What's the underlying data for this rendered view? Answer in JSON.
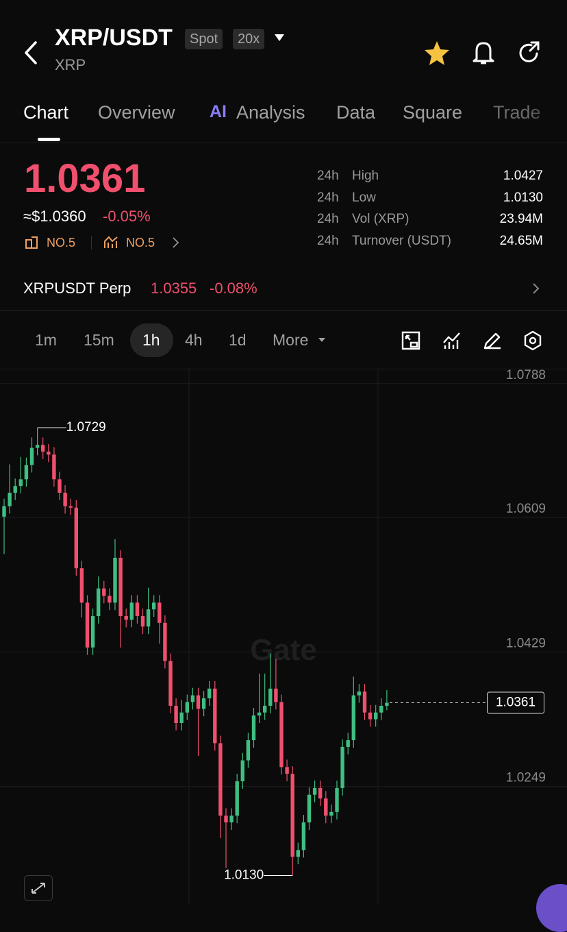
{
  "header": {
    "title": "XRP/USDT",
    "subtitle": "XRP",
    "badges": [
      "Spot",
      "20x"
    ]
  },
  "tabs": [
    "Chart",
    "Overview",
    "Analysis",
    "Data",
    "Square",
    "Trade"
  ],
  "ai_icon": "AI",
  "price": {
    "last": "1.0361",
    "usd": "≈$1.0360",
    "change": "-0.05%",
    "rank_1": "NO.5",
    "rank_2": "NO.5"
  },
  "stats": [
    {
      "period": "24h",
      "label": "High",
      "value": "1.0427"
    },
    {
      "period": "24h",
      "label": "Low",
      "value": "1.0130"
    },
    {
      "period": "24h",
      "label": "Vol (XRP)",
      "value": "23.94M"
    },
    {
      "period": "24h",
      "label": "Turnover (USDT)",
      "value": "24.65M"
    }
  ],
  "perp": {
    "name": "XRPUSDT Perp",
    "price": "1.0355",
    "change": "-0.08%"
  },
  "intervals": [
    "1m",
    "15m",
    "1h",
    "4h",
    "1d",
    "More"
  ],
  "watermark": "Gate",
  "chart_data": {
    "type": "candlestick",
    "open": [
      1.061,
      1.0624,
      1.0642,
      1.0651,
      1.066,
      1.0679,
      1.0702,
      1.0706,
      1.0697,
      1.0693,
      1.066,
      1.0642,
      1.0624,
      1.0622,
      1.0541,
      1.0495,
      1.0435,
      1.0477,
      1.0514,
      1.0504,
      1.0495,
      1.0555,
      1.0477,
      1.0472,
      1.0495,
      1.0477,
      1.0463,
      1.0486,
      1.0495,
      1.0468,
      1.0417,
      1.0357,
      1.0334,
      1.0348,
      1.0362,
      1.0371,
      1.0353,
      1.0367,
      1.038,
      1.0307,
      1.021,
      1.0201,
      1.021,
      1.0256,
      1.0284,
      1.0311,
      1.0344,
      1.0348,
      1.0357,
      1.038,
      1.0362,
      1.0275,
      1.0266,
      1.0155,
      1.0164,
      1.0201,
      1.0238,
      1.0247,
      1.0233,
      1.021,
      1.0215,
      1.0247,
      1.0302,
      1.0311,
      1.0371,
      1.0376,
      1.0348,
      1.0339,
      1.0348,
      1.0357
    ],
    "high": [
      1.0634,
      1.068,
      1.0661,
      1.069,
      1.0689,
      1.0716,
      1.0729,
      1.0716,
      1.0707,
      1.0703,
      1.067,
      1.0652,
      1.0634,
      1.0632,
      1.0551,
      1.0505,
      1.0487,
      1.053,
      1.0524,
      1.0514,
      1.058,
      1.0565,
      1.0487,
      1.0505,
      1.0505,
      1.0487,
      1.0515,
      1.0505,
      1.0505,
      1.0478,
      1.0427,
      1.0367,
      1.0365,
      1.0372,
      1.0381,
      1.0381,
      1.0377,
      1.039,
      1.039,
      1.0317,
      1.022,
      1.022,
      1.0266,
      1.0294,
      1.0321,
      1.0354,
      1.04,
      1.04,
      1.0427,
      1.042,
      1.0372,
      1.0285,
      1.0276,
      1.0174,
      1.0211,
      1.0248,
      1.0257,
      1.0257,
      1.0243,
      1.0225,
      1.0257,
      1.0312,
      1.0321,
      1.0396,
      1.0386,
      1.0386,
      1.0358,
      1.0358,
      1.0367,
      1.0378
    ],
    "low": [
      1.056,
      1.0614,
      1.0632,
      1.0641,
      1.065,
      1.0669,
      1.0692,
      1.0687,
      1.0683,
      1.065,
      1.0632,
      1.0614,
      1.0612,
      1.0531,
      1.0475,
      1.0425,
      1.0425,
      1.0467,
      1.0494,
      1.0485,
      1.0485,
      1.0435,
      1.0462,
      1.0462,
      1.0467,
      1.0453,
      1.0453,
      1.0476,
      1.044,
      1.0407,
      1.0347,
      1.0324,
      1.0324,
      1.0338,
      1.0352,
      1.029,
      1.0343,
      1.0357,
      1.0297,
      1.018,
      1.014,
      1.0191,
      1.02,
      1.0246,
      1.0274,
      1.0301,
      1.0334,
      1.0338,
      1.0347,
      1.0352,
      1.0265,
      1.0256,
      1.013,
      1.0145,
      1.0154,
      1.0191,
      1.0228,
      1.0223,
      1.02,
      1.02,
      1.0205,
      1.0237,
      1.0292,
      1.0301,
      1.0361,
      1.0338,
      1.0329,
      1.0329,
      1.0338,
      1.0351
    ],
    "close": [
      1.0624,
      1.0642,
      1.0651,
      1.066,
      1.0679,
      1.0702,
      1.0706,
      1.0697,
      1.0693,
      1.066,
      1.0642,
      1.0624,
      1.0622,
      1.0541,
      1.0495,
      1.0435,
      1.0477,
      1.0514,
      1.0504,
      1.0495,
      1.0555,
      1.0477,
      1.0472,
      1.0495,
      1.0477,
      1.0463,
      1.0486,
      1.0495,
      1.0468,
      1.0417,
      1.0357,
      1.0334,
      1.0348,
      1.0362,
      1.0371,
      1.0353,
      1.0367,
      1.038,
      1.0307,
      1.021,
      1.0201,
      1.021,
      1.0256,
      1.0284,
      1.0311,
      1.0344,
      1.0348,
      1.0357,
      1.038,
      1.0362,
      1.0275,
      1.0266,
      1.0155,
      1.0164,
      1.0201,
      1.0238,
      1.0247,
      1.0233,
      1.021,
      1.0215,
      1.0247,
      1.0302,
      1.0311,
      1.0371,
      1.0376,
      1.0348,
      1.0339,
      1.0348,
      1.0357,
      1.0361
    ],
    "up_color": "#3fbf82",
    "down_color": "#f0506e",
    "ylim": [
      1.0092,
      1.0807
    ],
    "yticks": [
      1.0788,
      1.0609,
      1.0429,
      1.0249
    ],
    "grid": true,
    "max_marker": {
      "value": 1.0729,
      "label": "1.0729"
    },
    "min_marker": {
      "value": 1.013,
      "label": "1.0130"
    },
    "last_price": {
      "value": 1.0361,
      "label": "1.0361"
    }
  }
}
